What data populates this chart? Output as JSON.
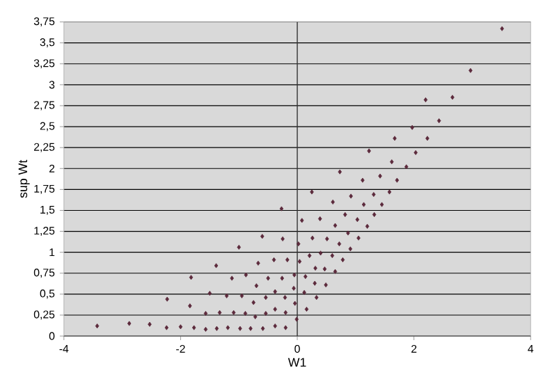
{
  "chart_data": {
    "type": "scatter",
    "xlabel": "W1",
    "ylabel": "sup Wt",
    "x": [
      -3.43,
      -2.88,
      -2.53,
      -2.24,
      -2.23,
      -2.0,
      -1.84,
      -1.82,
      -1.77,
      -1.57,
      -1.57,
      -1.5,
      -1.39,
      -1.38,
      -1.33,
      -1.19,
      -1.21,
      -1.12,
      -1.09,
      -1.0,
      -0.98,
      -0.95,
      -0.89,
      -0.88,
      -0.8,
      -0.75,
      -0.72,
      -0.7,
      -0.67,
      -0.6,
      -0.59,
      -0.54,
      -0.54,
      -0.5,
      -0.4,
      -0.38,
      -0.38,
      -0.38,
      -0.27,
      -0.25,
      -0.17,
      -0.26,
      -0.21,
      -0.2,
      -0.2,
      -0.01,
      -0.04,
      -0.06,
      -0.05,
      0.04,
      0.02,
      0.08,
      0.16,
      0.12,
      0.14,
      0.21,
      0.26,
      0.33,
      0.3,
      0.31,
      0.4,
      0.39,
      0.49,
      0.47,
      0.51,
      0.61,
      0.65,
      0.6,
      0.65,
      0.72,
      0.78,
      0.82,
      0.87,
      0.92,
      0.91,
      1.05,
      1.03,
      1.14,
      1.2,
      1.31,
      1.32,
      1.45,
      1.58,
      1.71,
      1.12,
      0.25,
      3.51,
      2.97,
      2.2,
      2.66,
      2.43,
      1.97,
      1.67,
      2.23,
      1.23,
      2.03,
      1.62,
      1.87,
      0.73,
      1.42
    ],
    "values": [
      0.12,
      0.15,
      0.14,
      0.1,
      0.44,
      0.11,
      0.36,
      0.7,
      0.1,
      0.08,
      0.27,
      0.51,
      0.84,
      0.09,
      0.28,
      0.1,
      0.48,
      0.69,
      0.28,
      1.06,
      0.09,
      0.48,
      0.27,
      0.73,
      0.09,
      0.4,
      0.23,
      0.6,
      0.87,
      1.19,
      0.09,
      0.27,
      0.46,
      0.69,
      0.91,
      0.53,
      0.32,
      0.12,
      1.52,
      1.16,
      0.91,
      0.69,
      0.46,
      0.28,
      0.1,
      0.2,
      0.39,
      0.57,
      0.73,
      0.89,
      1.1,
      1.38,
      0.32,
      0.52,
      0.71,
      0.96,
      1.17,
      0.46,
      0.63,
      0.81,
      0.99,
      1.4,
      0.61,
      0.8,
      1.16,
      1.6,
      0.77,
      0.96,
      1.32,
      1.1,
      0.91,
      1.45,
      1.23,
      1.67,
      1.04,
      1.17,
      1.39,
      1.57,
      1.31,
      1.69,
      1.45,
      1.57,
      1.72,
      1.86,
      1.86,
      1.72,
      3.67,
      3.17,
      2.82,
      2.85,
      2.57,
      2.49,
      2.36,
      2.36,
      2.21,
      2.19,
      2.08,
      2.02,
      1.96,
      1.91
    ],
    "color": "#5c2a3c",
    "marker": "diamond",
    "grid": "y",
    "xlim": [
      -4,
      4
    ],
    "xticks": [
      -4,
      -2,
      0,
      2,
      4
    ],
    "ylim": [
      0,
      3.75
    ],
    "yticks": [
      0,
      {
        "value": 0.25,
        "label": "0,25"
      },
      {
        "value": 0.5,
        "label": "0,5"
      },
      {
        "value": 0.75,
        "label": "0,75"
      },
      1,
      {
        "value": 1.25,
        "label": "1,25"
      },
      {
        "value": 1.5,
        "label": "1,5"
      },
      {
        "value": 1.75,
        "label": "1,75"
      },
      2,
      {
        "value": 2.25,
        "label": "2,25"
      },
      {
        "value": 2.5,
        "label": "2,5"
      },
      {
        "value": 2.75,
        "label": "2,75"
      },
      3,
      {
        "value": 3.25,
        "label": "3,25"
      },
      {
        "value": 3.5,
        "label": "3,5"
      },
      {
        "value": 3.75,
        "label": "3,75"
      }
    ],
    "ref_lines": [
      {
        "axis": "x",
        "value": 0,
        "color": "#303030"
      }
    ]
  }
}
